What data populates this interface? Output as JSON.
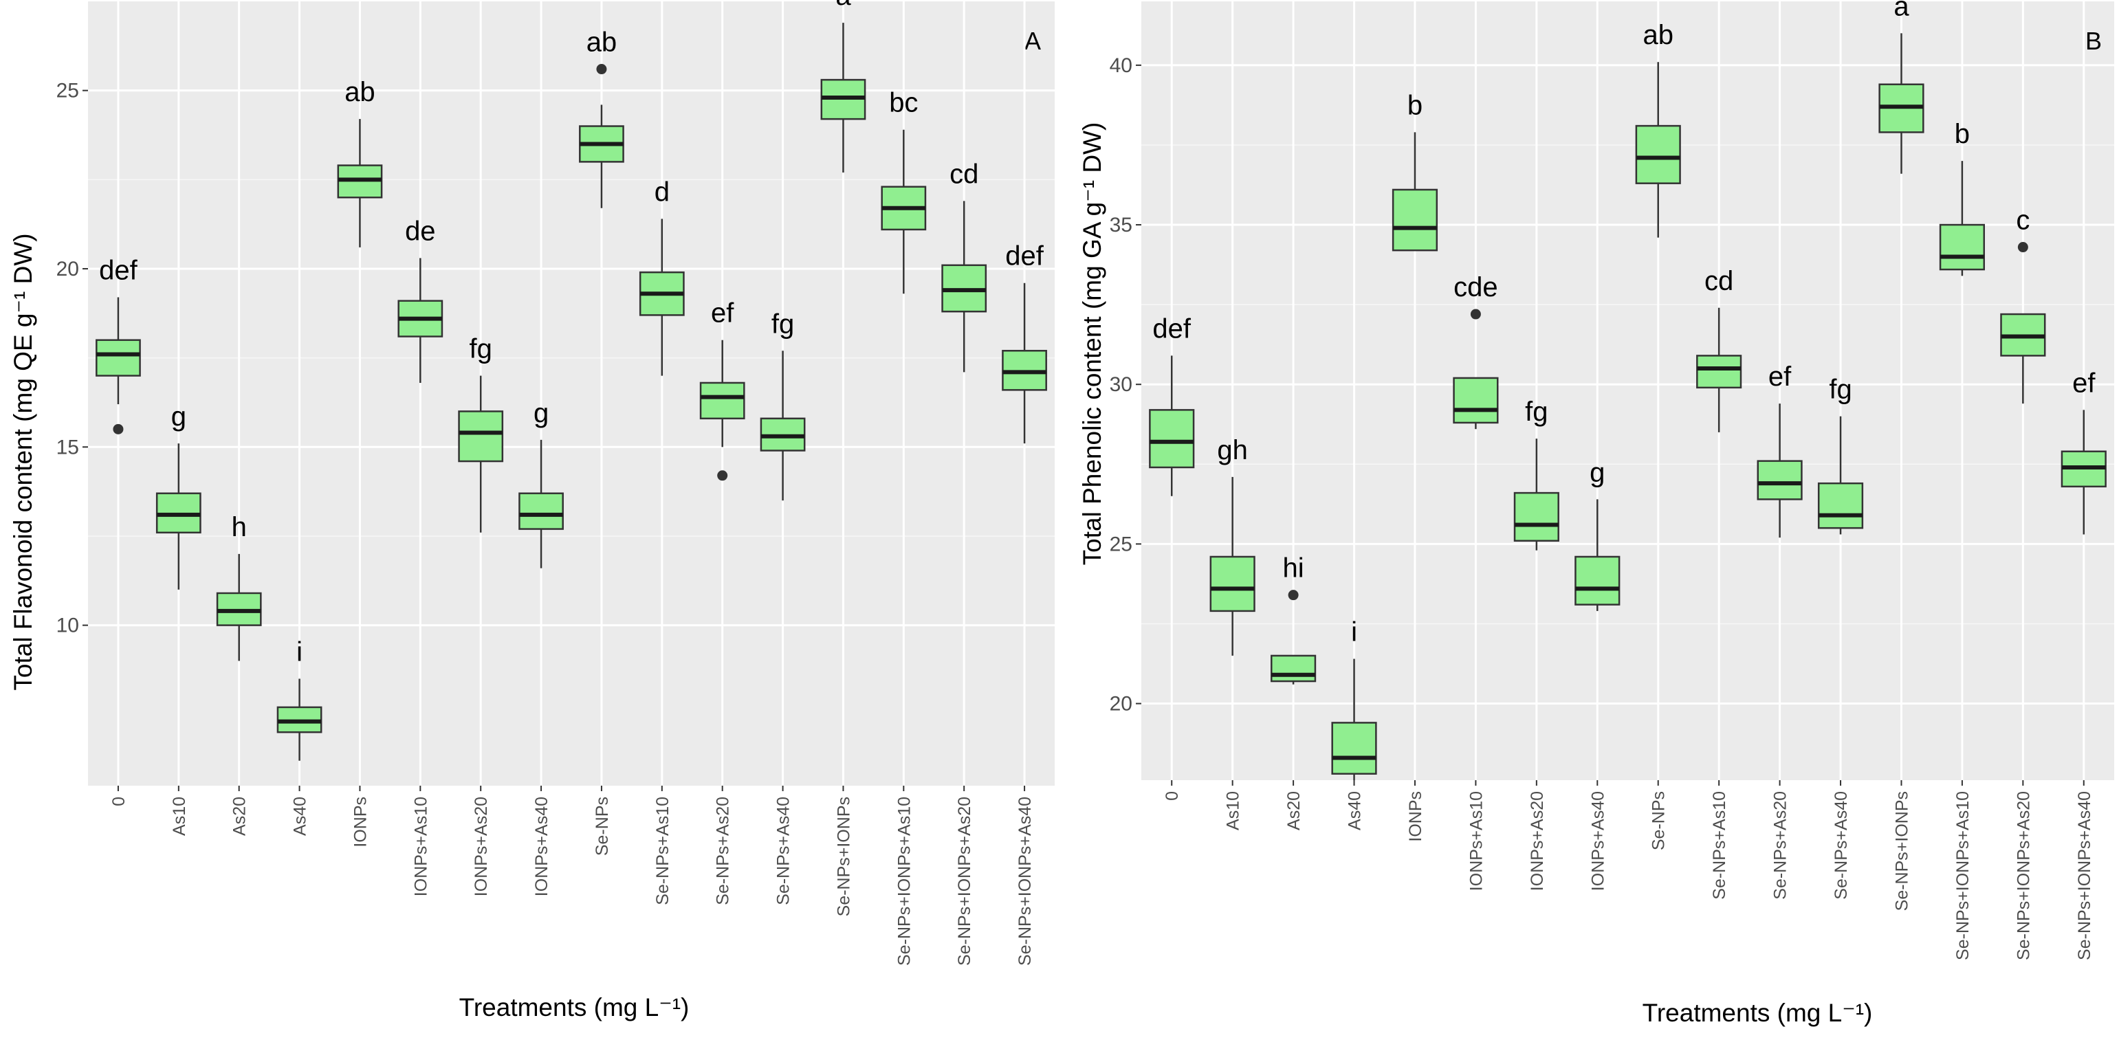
{
  "chart_data": [
    {
      "type": "box",
      "panel_label": "A",
      "ylabel": "Total Flavonoid content (mg QE g⁻¹ DW)",
      "xlabel": "Treatments (mg L⁻¹)",
      "ylim": [
        5.5,
        27.5
      ],
      "yticks": [
        10,
        15,
        20,
        25
      ],
      "box_color": "#90ee90",
      "categories": [
        "0",
        "As10",
        "As20",
        "As40",
        "IONPs",
        "IONPs+As10",
        "IONPs+As20",
        "IONPs+As40",
        "Se-NPs",
        "Se-NPs+As10",
        "Se-NPs+As20",
        "Se-NPs+As40",
        "Se-NPs+IONPs",
        "Se-NPs+IONPs+As10",
        "Se-NPs+IONPs+As20",
        "Se-NPs+IONPs+As40"
      ],
      "boxes": [
        {
          "min": 16.2,
          "q1": 17.0,
          "median": 17.6,
          "q3": 18.0,
          "max": 19.2,
          "outliers": [
            15.5
          ]
        },
        {
          "min": 11.0,
          "q1": 12.6,
          "median": 13.1,
          "q3": 13.7,
          "max": 15.1,
          "outliers": []
        },
        {
          "min": 9.0,
          "q1": 10.0,
          "median": 10.4,
          "q3": 10.9,
          "max": 12.0,
          "outliers": []
        },
        {
          "min": 6.2,
          "q1": 7.0,
          "median": 7.3,
          "q3": 7.7,
          "max": 8.5,
          "outliers": []
        },
        {
          "min": 20.6,
          "q1": 22.0,
          "median": 22.5,
          "q3": 22.9,
          "max": 24.2,
          "outliers": []
        },
        {
          "min": 16.8,
          "q1": 18.1,
          "median": 18.6,
          "q3": 19.1,
          "max": 20.3,
          "outliers": []
        },
        {
          "min": 12.6,
          "q1": 14.6,
          "median": 15.4,
          "q3": 16.0,
          "max": 17.0,
          "outliers": []
        },
        {
          "min": 11.6,
          "q1": 12.7,
          "median": 13.1,
          "q3": 13.7,
          "max": 15.2,
          "outliers": []
        },
        {
          "min": 21.7,
          "q1": 23.0,
          "median": 23.5,
          "q3": 24.0,
          "max": 24.6,
          "outliers": [
            25.6
          ]
        },
        {
          "min": 17.0,
          "q1": 18.7,
          "median": 19.3,
          "q3": 19.9,
          "max": 21.4,
          "outliers": []
        },
        {
          "min": 15.0,
          "q1": 15.8,
          "median": 16.4,
          "q3": 16.8,
          "max": 18.0,
          "outliers": [
            14.2
          ]
        },
        {
          "min": 13.5,
          "q1": 14.9,
          "median": 15.3,
          "q3": 15.8,
          "max": 17.7,
          "outliers": []
        },
        {
          "min": 22.7,
          "q1": 24.2,
          "median": 24.8,
          "q3": 25.3,
          "max": 26.9,
          "outliers": []
        },
        {
          "min": 19.3,
          "q1": 21.1,
          "median": 21.7,
          "q3": 22.3,
          "max": 23.9,
          "outliers": []
        },
        {
          "min": 17.1,
          "q1": 18.8,
          "median": 19.4,
          "q3": 20.1,
          "max": 21.9,
          "outliers": []
        },
        {
          "min": 15.1,
          "q1": 16.6,
          "median": 17.1,
          "q3": 17.7,
          "max": 19.6,
          "outliers": []
        }
      ],
      "letters": [
        "def",
        "g",
        "h",
        "i",
        "ab",
        "de",
        "fg",
        "g",
        "ab",
        "d",
        "ef",
        "fg",
        "a",
        "bc",
        "cd",
        "def"
      ]
    },
    {
      "type": "box",
      "panel_label": "B",
      "ylabel": "Total Phenolic content (mg GA g⁻¹ DW)",
      "xlabel": "Treatments (mg L⁻¹)",
      "ylim": [
        17.6,
        42.0
      ],
      "yticks": [
        20,
        25,
        30,
        35,
        40
      ],
      "box_color": "#90ee90",
      "categories": [
        "0",
        "As10",
        "As20",
        "As40",
        "IONPs",
        "IONPs+As10",
        "IONPs+As20",
        "IONPs+As40",
        "Se-NPs",
        "Se-NPs+As10",
        "Se-NPs+As20",
        "Se-NPs+As40",
        "Se-NPs+IONPs",
        "Se-NPs+IONPs+As10",
        "Se-NPs+IONPs+As20",
        "Se-NPs+IONPs+As40"
      ],
      "boxes": [
        {
          "min": 26.5,
          "q1": 27.4,
          "median": 28.2,
          "q3": 29.2,
          "max": 30.9,
          "outliers": []
        },
        {
          "min": 21.5,
          "q1": 22.9,
          "median": 23.6,
          "q3": 24.6,
          "max": 27.1,
          "outliers": []
        },
        {
          "min": 20.6,
          "q1": 20.7,
          "median": 20.9,
          "q3": 21.5,
          "max": 21.5,
          "outliers": [
            23.4
          ]
        },
        {
          "min": 17.6,
          "q1": 17.8,
          "median": 18.3,
          "q3": 19.4,
          "max": 21.4,
          "outliers": []
        },
        {
          "min": 34.2,
          "q1": 34.2,
          "median": 34.9,
          "q3": 36.1,
          "max": 37.9,
          "outliers": []
        },
        {
          "min": 28.6,
          "q1": 28.8,
          "median": 29.2,
          "q3": 30.2,
          "max": 30.2,
          "outliers": [
            32.2
          ]
        },
        {
          "min": 24.8,
          "q1": 25.1,
          "median": 25.6,
          "q3": 26.6,
          "max": 28.3,
          "outliers": []
        },
        {
          "min": 22.9,
          "q1": 23.1,
          "median": 23.6,
          "q3": 24.6,
          "max": 26.4,
          "outliers": []
        },
        {
          "min": 34.6,
          "q1": 36.3,
          "median": 37.1,
          "q3": 38.1,
          "max": 40.1,
          "outliers": []
        },
        {
          "min": 28.5,
          "q1": 29.9,
          "median": 30.5,
          "q3": 30.9,
          "max": 32.4,
          "outliers": []
        },
        {
          "min": 25.2,
          "q1": 26.4,
          "median": 26.9,
          "q3": 27.6,
          "max": 29.4,
          "outliers": []
        },
        {
          "min": 25.3,
          "q1": 25.5,
          "median": 25.9,
          "q3": 26.9,
          "max": 29.0,
          "outliers": []
        },
        {
          "min": 36.6,
          "q1": 37.9,
          "median": 38.7,
          "q3": 39.4,
          "max": 41.0,
          "outliers": []
        },
        {
          "min": 33.4,
          "q1": 33.6,
          "median": 34.0,
          "q3": 35.0,
          "max": 37.0,
          "outliers": []
        },
        {
          "min": 29.4,
          "q1": 30.9,
          "median": 31.5,
          "q3": 32.2,
          "max": 32.2,
          "outliers": [
            34.3
          ]
        },
        {
          "min": 25.3,
          "q1": 26.8,
          "median": 27.4,
          "q3": 27.9,
          "max": 29.2,
          "outliers": []
        }
      ],
      "letters": [
        "def",
        "gh",
        "hi",
        "i",
        "b",
        "cde",
        "fg",
        "g",
        "ab",
        "cd",
        "ef",
        "fg",
        "a",
        "b",
        "c",
        "ef"
      ]
    }
  ]
}
